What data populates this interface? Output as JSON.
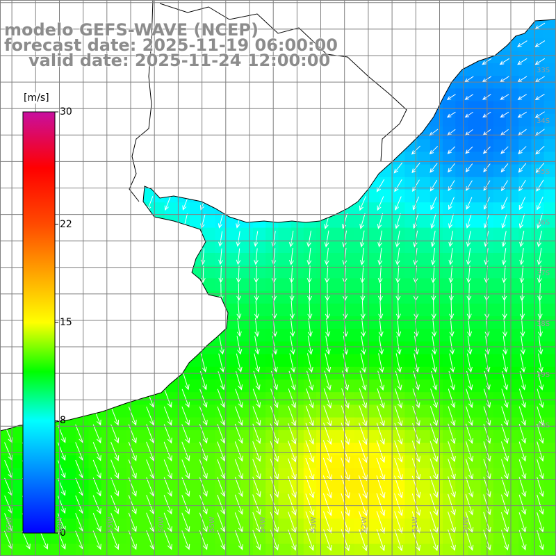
{
  "header": {
    "model_line": "modelo GEFS-WAVE (NCEP)",
    "forecast_line": "forecast date: 2025-11-19 06:00:00",
    "valid_line": "valid date: 2025-11-24 12:00:00"
  },
  "colorbar": {
    "unit": "[m/s]",
    "ticks": [
      {
        "label": "30",
        "value": 30
      },
      {
        "label": "22",
        "value": 22
      },
      {
        "label": "15",
        "value": 15
      },
      {
        "label": "8",
        "value": 8
      },
      {
        "label": "0",
        "value": 0
      }
    ],
    "range": [
      0,
      30
    ],
    "stops": [
      {
        "value": 0,
        "color": "#0000ff"
      },
      {
        "value": 8,
        "color": "#00ffff"
      },
      {
        "value": 11.5,
        "color": "#00ff00"
      },
      {
        "value": 15,
        "color": "#ffff00"
      },
      {
        "value": 22,
        "color": "#ff4a00"
      },
      {
        "value": 26,
        "color": "#ff0000"
      },
      {
        "value": 30,
        "color": "#c80fa0"
      }
    ]
  },
  "map": {
    "bounds": {
      "lon_min": -72.5,
      "lon_max": -49.1,
      "lat_min": -43.9,
      "lat_max": -22.9
    },
    "graticule_step_deg": 1,
    "lon_labels": [
      "65W",
      "60W",
      "55W",
      "50W",
      "55W",
      "54W",
      "53W",
      "52W",
      "51W",
      "50W"
    ],
    "lat_labels": [
      "33S",
      "34S",
      "35S",
      "36S",
      "37S",
      "38S",
      "39S",
      "40S"
    ],
    "colors": {
      "land": "#ffffff",
      "coast": "#000000",
      "grid": "#808080",
      "arrow": "#ffffff"
    }
  },
  "wind_field": {
    "units": "m/s",
    "regions": [
      {
        "name": "north-east",
        "speed": 5.5,
        "direction_to_deg": 235
      },
      {
        "name": "central-shelf",
        "speed": 9.5,
        "direction_to_deg": 190
      },
      {
        "name": "south",
        "speed": 12.5,
        "direction_to_deg": 160
      },
      {
        "name": "south-east-max",
        "speed": 14.0,
        "direction_to_deg": 165
      }
    ]
  }
}
